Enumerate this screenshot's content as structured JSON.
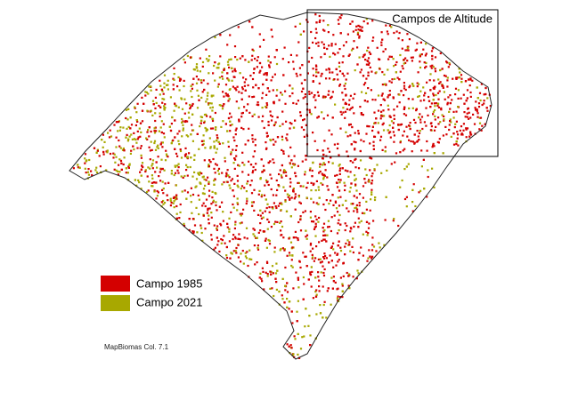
{
  "map": {
    "inset_title": "Campos de Altitude",
    "legend": [
      {
        "label": "Campo 1985",
        "color": "#d40000"
      },
      {
        "label": "Campo 2021",
        "color": "#a8a800"
      }
    ],
    "credit": "MapBiomas Col. 7.1"
  }
}
